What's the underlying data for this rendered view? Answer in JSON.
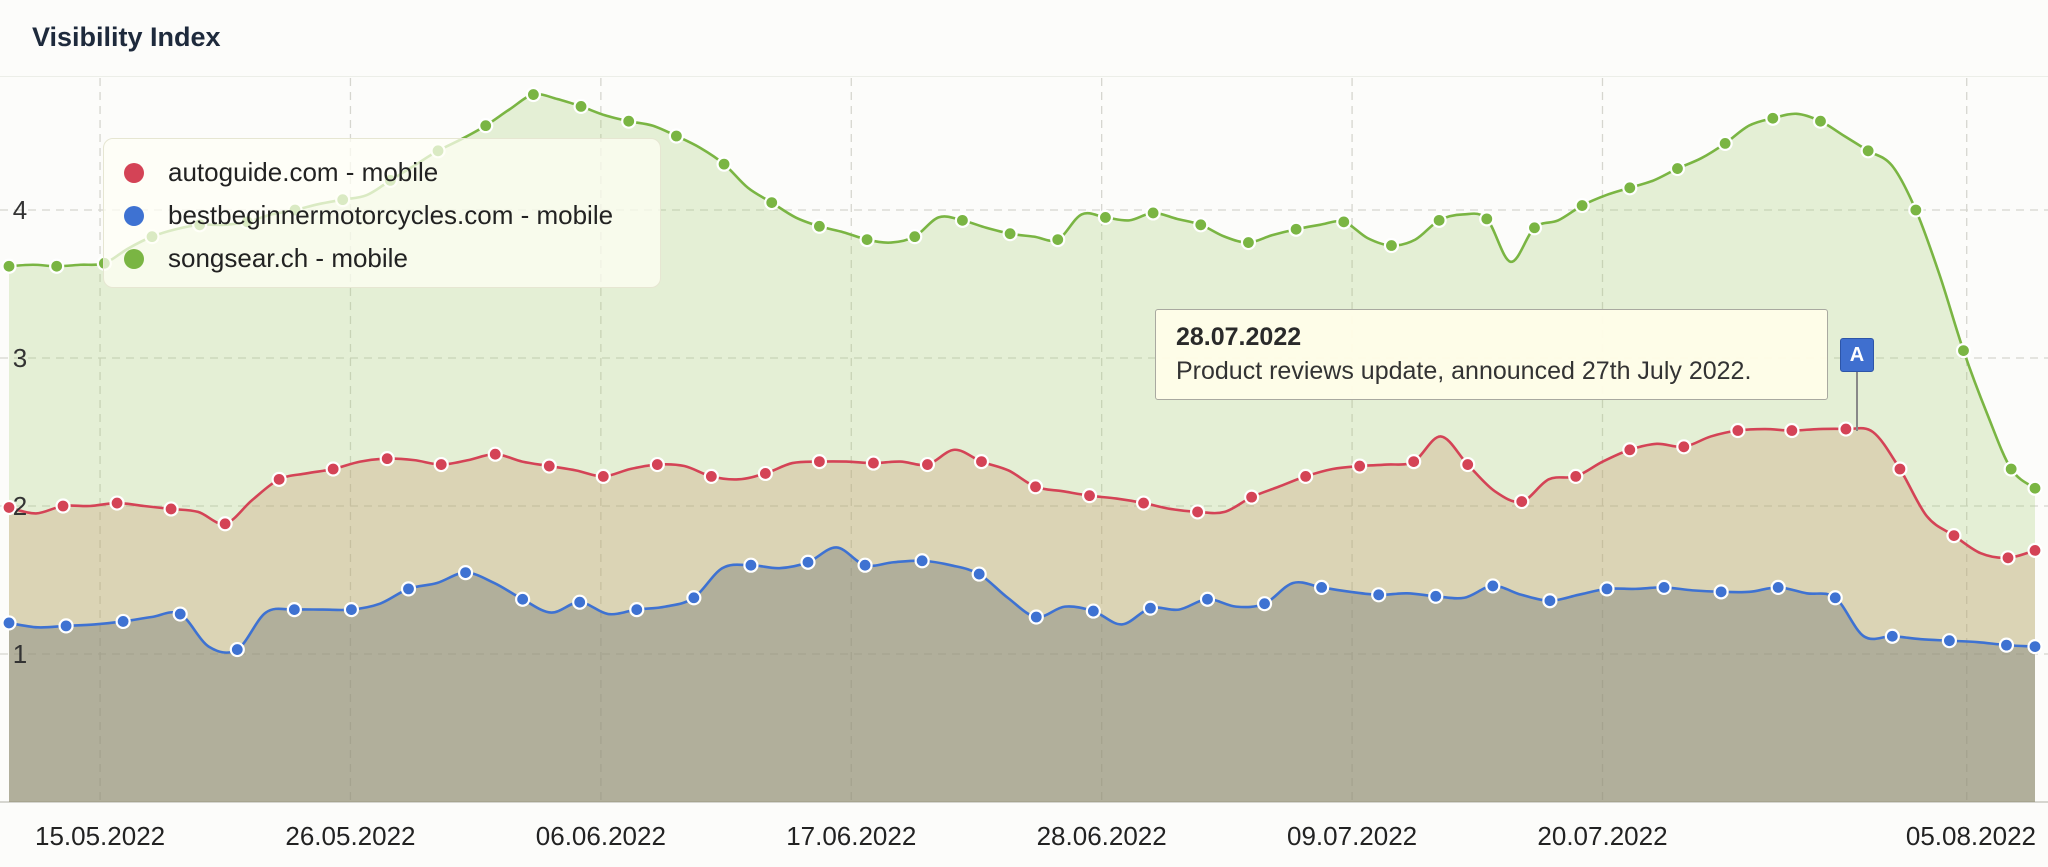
{
  "title": "Visibility Index",
  "legend": [
    {
      "label": "autoguide.com - mobile",
      "color": "#d44356"
    },
    {
      "label": "bestbeginnermotorcycles.com - mobile",
      "color": "#3e72d2"
    },
    {
      "label": "songsear.ch - mobile",
      "color": "#7ab543"
    }
  ],
  "event": {
    "flag": "A",
    "date": "28.07.2022",
    "text": "Product reviews update, announced 27th July 2022.",
    "date_index": 75
  },
  "chart_data": {
    "type": "area",
    "title": "Visibility Index",
    "y_ticks": [
      1,
      2,
      3,
      4
    ],
    "x_tick_labels": [
      "15.05.2022",
      "26.05.2022",
      "06.06.2022",
      "17.06.2022",
      "28.06.2022",
      "09.07.2022",
      "20.07.2022",
      "05.08.2022"
    ],
    "x_tick_index": [
      4,
      15,
      26,
      37,
      48,
      59,
      70,
      86
    ],
    "grid": true,
    "legend_position": "top-left",
    "series": [
      {
        "name": "songsear.ch - mobile",
        "color": "#7ab543",
        "values": [
          3.62,
          3.63,
          3.62,
          3.63,
          3.64,
          3.74,
          3.82,
          3.87,
          3.9,
          3.9,
          3.92,
          3.97,
          4.0,
          4.04,
          4.07,
          4.1,
          4.2,
          4.3,
          4.4,
          4.48,
          4.57,
          4.68,
          4.78,
          4.75,
          4.7,
          4.64,
          4.6,
          4.57,
          4.5,
          4.42,
          4.31,
          4.15,
          4.05,
          3.95,
          3.89,
          3.85,
          3.8,
          3.78,
          3.82,
          3.95,
          3.93,
          3.88,
          3.84,
          3.82,
          3.8,
          3.97,
          3.95,
          3.93,
          3.98,
          3.94,
          3.9,
          3.82,
          3.78,
          3.83,
          3.87,
          3.9,
          3.92,
          3.81,
          3.76,
          3.8,
          3.93,
          3.97,
          3.94,
          3.65,
          3.88,
          3.93,
          4.03,
          4.1,
          4.15,
          4.2,
          4.28,
          4.35,
          4.45,
          4.57,
          4.62,
          4.65,
          4.6,
          4.5,
          4.4,
          4.3,
          4.0,
          3.56,
          3.05,
          2.62,
          2.25,
          2.12
        ]
      },
      {
        "name": "autoguide.com - mobile",
        "color": "#d44356",
        "values": [
          1.99,
          1.95,
          2.0,
          2.0,
          2.02,
          2.0,
          1.98,
          1.96,
          1.88,
          2.04,
          2.18,
          2.22,
          2.25,
          2.3,
          2.32,
          2.31,
          2.28,
          2.31,
          2.35,
          2.3,
          2.27,
          2.24,
          2.2,
          2.25,
          2.28,
          2.27,
          2.2,
          2.18,
          2.22,
          2.29,
          2.3,
          2.3,
          2.29,
          2.3,
          2.28,
          2.38,
          2.3,
          2.24,
          2.13,
          2.1,
          2.07,
          2.05,
          2.02,
          1.98,
          1.96,
          1.96,
          2.06,
          2.13,
          2.2,
          2.25,
          2.27,
          2.28,
          2.3,
          2.47,
          2.28,
          2.1,
          2.03,
          2.18,
          2.2,
          2.3,
          2.38,
          2.42,
          2.4,
          2.47,
          2.51,
          2.52,
          2.51,
          2.52,
          2.52,
          2.5,
          2.25,
          1.93,
          1.8,
          1.68,
          1.65,
          1.7
        ]
      },
      {
        "name": "bestbeginnermotorcycles.com - mobile",
        "color": "#3e72d2",
        "values": [
          1.21,
          1.18,
          1.19,
          1.2,
          1.22,
          1.25,
          1.27,
          1.05,
          1.03,
          1.28,
          1.3,
          1.3,
          1.3,
          1.34,
          1.44,
          1.48,
          1.55,
          1.48,
          1.37,
          1.28,
          1.35,
          1.27,
          1.3,
          1.32,
          1.38,
          1.58,
          1.6,
          1.58,
          1.62,
          1.72,
          1.6,
          1.62,
          1.63,
          1.6,
          1.54,
          1.38,
          1.25,
          1.32,
          1.29,
          1.2,
          1.31,
          1.3,
          1.37,
          1.32,
          1.34,
          1.48,
          1.45,
          1.42,
          1.4,
          1.41,
          1.39,
          1.38,
          1.46,
          1.4,
          1.36,
          1.4,
          1.44,
          1.44,
          1.45,
          1.43,
          1.42,
          1.42,
          1.45,
          1.41,
          1.38,
          1.12,
          1.12,
          1.1,
          1.09,
          1.08,
          1.06,
          1.05
        ]
      }
    ],
    "series_note": "values sampled across the date range; first point 11.05.2022, last point 08.08.2022"
  }
}
